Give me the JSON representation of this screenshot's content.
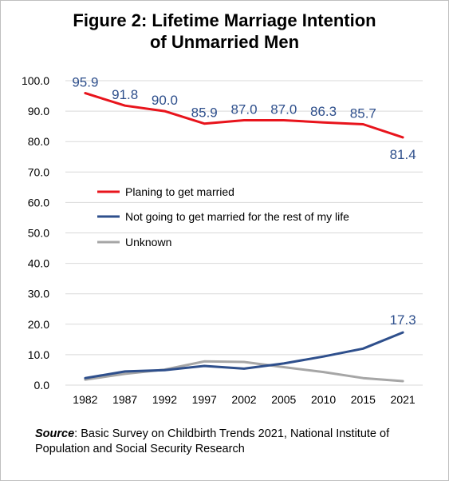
{
  "title_line1": "Figure 2: Lifetime Marriage Intention",
  "title_line2": "of Unmarried Men",
  "source_label": "Source",
  "source_text": ": Basic Survey on Childbirth Trends 2021, National Institute of Population and Social Security Research",
  "chart_data": {
    "type": "line",
    "x": [
      "1982",
      "1987",
      "1992",
      "1997",
      "2002",
      "2005",
      "2010",
      "2015",
      "2021"
    ],
    "ylim": [
      0,
      100
    ],
    "yticks": [
      "0.0",
      "10.0",
      "20.0",
      "30.0",
      "40.0",
      "50.0",
      "60.0",
      "70.0",
      "80.0",
      "90.0",
      "100.0"
    ],
    "grid": true,
    "legend_position": "center-left",
    "series": [
      {
        "name": "Planing to get married",
        "color": "#e8141c",
        "values": [
          95.9,
          91.8,
          90.0,
          85.9,
          87.0,
          87.0,
          86.3,
          85.7,
          81.4
        ],
        "labels": [
          "95.9",
          "91.8",
          "90.0",
          "85.9",
          "87.0",
          "87.0",
          "86.3",
          "85.7",
          "81.4"
        ]
      },
      {
        "name": "Not going to get married for the rest of my life",
        "color": "#2e4f8c",
        "values": [
          2.3,
          4.5,
          4.9,
          6.3,
          5.4,
          7.1,
          9.4,
          12.0,
          17.3
        ],
        "labels": [
          "",
          "",
          "",
          "",
          "",
          "",
          "",
          "",
          "17.3"
        ]
      },
      {
        "name": "Unknown",
        "color": "#a6a6a6",
        "values": [
          1.8,
          3.7,
          5.1,
          7.8,
          7.6,
          5.9,
          4.3,
          2.3,
          1.3
        ],
        "labels": [
          "",
          "",
          "",
          "",
          "",
          "",
          "",
          "",
          ""
        ]
      }
    ]
  }
}
